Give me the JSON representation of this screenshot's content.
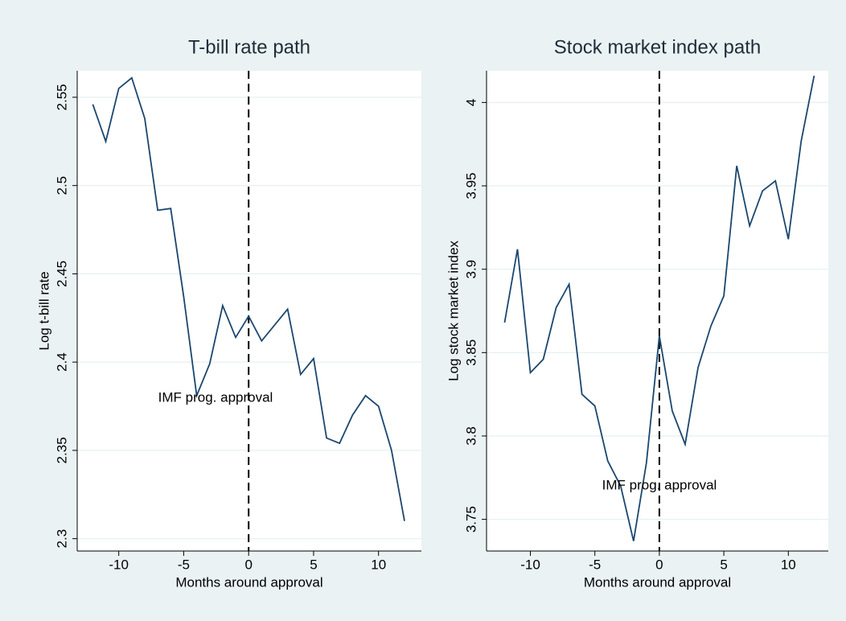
{
  "chart_data": [
    {
      "type": "line",
      "title": "T-bill rate path",
      "xlabel": "Months around approval",
      "ylabel": "Log t-bill rate",
      "annotation": "IMF prog. approval",
      "vline": 0,
      "x": [
        -12,
        -11,
        -10,
        -9,
        -8,
        -7,
        -6,
        -5,
        -4,
        -3,
        -2,
        -1,
        0,
        1,
        2,
        3,
        4,
        5,
        6,
        7,
        8,
        9,
        10,
        11,
        12
      ],
      "series": [
        {
          "name": "Log t-bill rate",
          "color": "#1a476f",
          "values": [
            2.546,
            2.525,
            2.555,
            2.561,
            2.538,
            2.486,
            2.487,
            2.437,
            2.381,
            2.399,
            2.432,
            2.414,
            2.426,
            2.412,
            2.421,
            2.43,
            2.393,
            2.402,
            2.357,
            2.354,
            2.37,
            2.381,
            2.375,
            2.35,
            2.31
          ]
        }
      ],
      "xlim": [
        -13.2,
        13.3
      ],
      "xticks": [
        -10,
        -5,
        0,
        5,
        10
      ],
      "ylim": [
        2.293,
        2.565
      ],
      "yticks": [
        2.3,
        2.35,
        2.4,
        2.45,
        2.5,
        2.55
      ],
      "grid": true
    },
    {
      "type": "line",
      "title": "Stock market index path",
      "xlabel": "Months around approval",
      "ylabel": "Log stock market index",
      "annotation": "IMF prog. approval",
      "vline": 0,
      "x": [
        -12,
        -11,
        -10,
        -9,
        -8,
        -7,
        -6,
        -5,
        -4,
        -3,
        -2,
        -1,
        0,
        1,
        2,
        3,
        4,
        5,
        6,
        7,
        8,
        9,
        10,
        11,
        12
      ],
      "series": [
        {
          "name": "Log stock market index",
          "color": "#1a476f",
          "values": [
            3.868,
            3.912,
            3.838,
            3.846,
            3.877,
            3.891,
            3.825,
            3.818,
            3.785,
            3.77,
            3.737,
            3.784,
            3.86,
            3.815,
            3.795,
            3.841,
            3.866,
            3.884,
            3.962,
            3.926,
            3.947,
            3.953,
            3.918,
            3.977,
            4.016
          ]
        }
      ],
      "xlim": [
        -13.4,
        13.1
      ],
      "xticks": [
        -10,
        -5,
        0,
        5,
        10
      ],
      "ylim": [
        3.731,
        4.019
      ],
      "yticks": [
        3.75,
        3.8,
        3.85,
        3.9,
        3.95,
        4
      ],
      "grid": true
    }
  ]
}
